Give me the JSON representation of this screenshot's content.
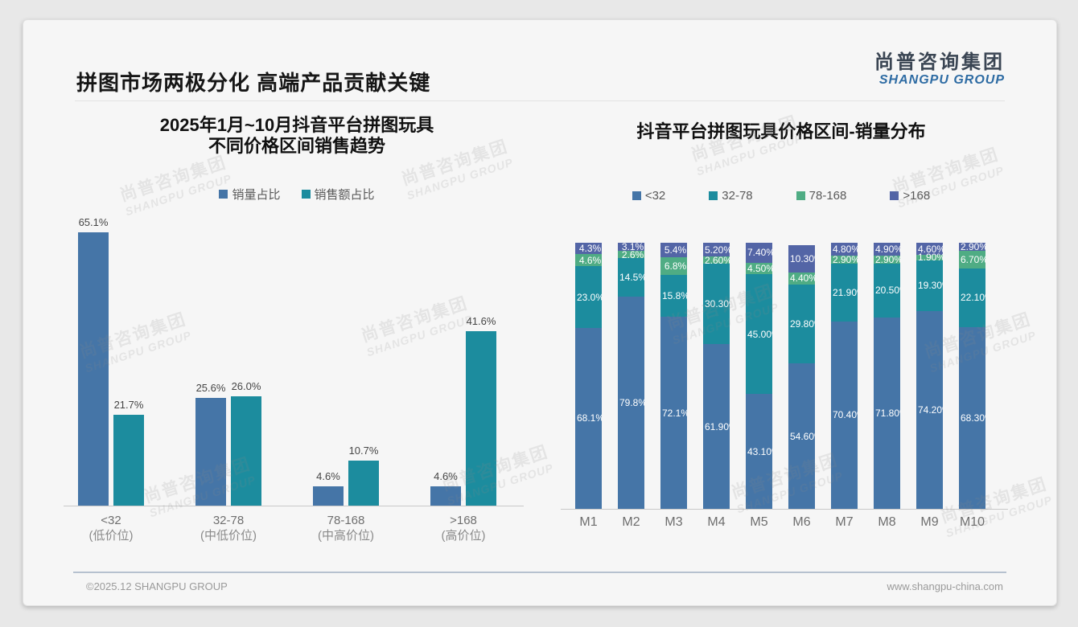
{
  "header": {
    "title": "拼图市场两极分化 高端产品贡献关键",
    "logo_cn": "尚普咨询集团",
    "logo_en": "SHANGPU GROUP"
  },
  "watermark": {
    "line1": "尚普咨询集团",
    "line2": "SHANGPU GROUP"
  },
  "footer": {
    "copyright": "©2025.12 SHANGPU GROUP",
    "website": "www.shangpu-china.com"
  },
  "colors": {
    "blue": "#4575A7",
    "teal": "#1C8C9E",
    "green": "#4FAC84",
    "slate": "#5365A6",
    "axis": "#c9c9c9"
  },
  "chart_data": [
    {
      "type": "bar",
      "title_line1": "2025年1月~10月抖音平台拼图玩具",
      "title_line2": "不同价格区间销售趋势",
      "categories": [
        "<32",
        "32-78",
        "78-168",
        ">168"
      ],
      "category_sublabels": [
        "(低价位)",
        "(中低价位)",
        "(中高价位)",
        "(高价位)"
      ],
      "series": [
        {
          "name": "销量占比",
          "color": "#4575A7",
          "values": [
            65.1,
            25.6,
            4.6,
            4.6
          ]
        },
        {
          "name": "销售额占比",
          "color": "#1C8C9E",
          "values": [
            21.7,
            26.0,
            10.7,
            41.6
          ]
        }
      ],
      "value_suffix": "%",
      "ylim": [
        0,
        70
      ],
      "grid": false,
      "legend_position": "top"
    },
    {
      "type": "stacked-bar-100",
      "title": "抖音平台拼图玩具价格区间-销量分布",
      "categories": [
        "M1",
        "M2",
        "M3",
        "M4",
        "M5",
        "M6",
        "M7",
        "M8",
        "M9",
        "M10"
      ],
      "stack_order": "bottom-to-top",
      "series": [
        {
          "name": "<32",
          "color": "#4575A7",
          "values": [
            68.1,
            79.8,
            72.1,
            61.9,
            43.1,
            54.6,
            70.4,
            71.8,
            74.2,
            68.3
          ],
          "labels": [
            "68.1%",
            "79.8%",
            "72.1%",
            "61.90%",
            "43.10%",
            "54.60%",
            "70.40%",
            "71.80%",
            "74.20%",
            "68.30%"
          ]
        },
        {
          "name": "32-78",
          "color": "#1C8C9E",
          "values": [
            23.0,
            14.5,
            15.8,
            30.3,
            45.0,
            29.8,
            21.9,
            20.5,
            19.3,
            22.1
          ],
          "labels": [
            "23.0%",
            "14.5%",
            "15.8%",
            "30.30%",
            "45.00%",
            "29.80%",
            "21.90%",
            "20.50%",
            "19.30%",
            "22.10%"
          ]
        },
        {
          "name": "78-168",
          "color": "#4FAC84",
          "values": [
            4.6,
            2.6,
            6.8,
            2.6,
            4.5,
            4.4,
            2.9,
            2.9,
            1.9,
            6.7
          ],
          "labels": [
            "4.6%",
            "2.6%",
            "6.8%",
            "2.60%",
            "4.50%",
            "4.40%",
            "2.90%",
            "2.90%",
            "1.90%",
            "6.70%"
          ]
        },
        {
          "name": ">168",
          "color": "#5365A6",
          "values": [
            4.3,
            3.1,
            5.4,
            5.2,
            7.4,
            10.3,
            4.8,
            4.9,
            4.6,
            2.9
          ],
          "labels": [
            "4.3%",
            "3.1%",
            "5.4%",
            "5.20%",
            "7.40%",
            "10.30%",
            "4.80%",
            "4.90%",
            "4.60%",
            "2.90%"
          ]
        }
      ],
      "ylim": [
        0,
        100
      ],
      "grid": false,
      "legend_position": "top"
    }
  ]
}
